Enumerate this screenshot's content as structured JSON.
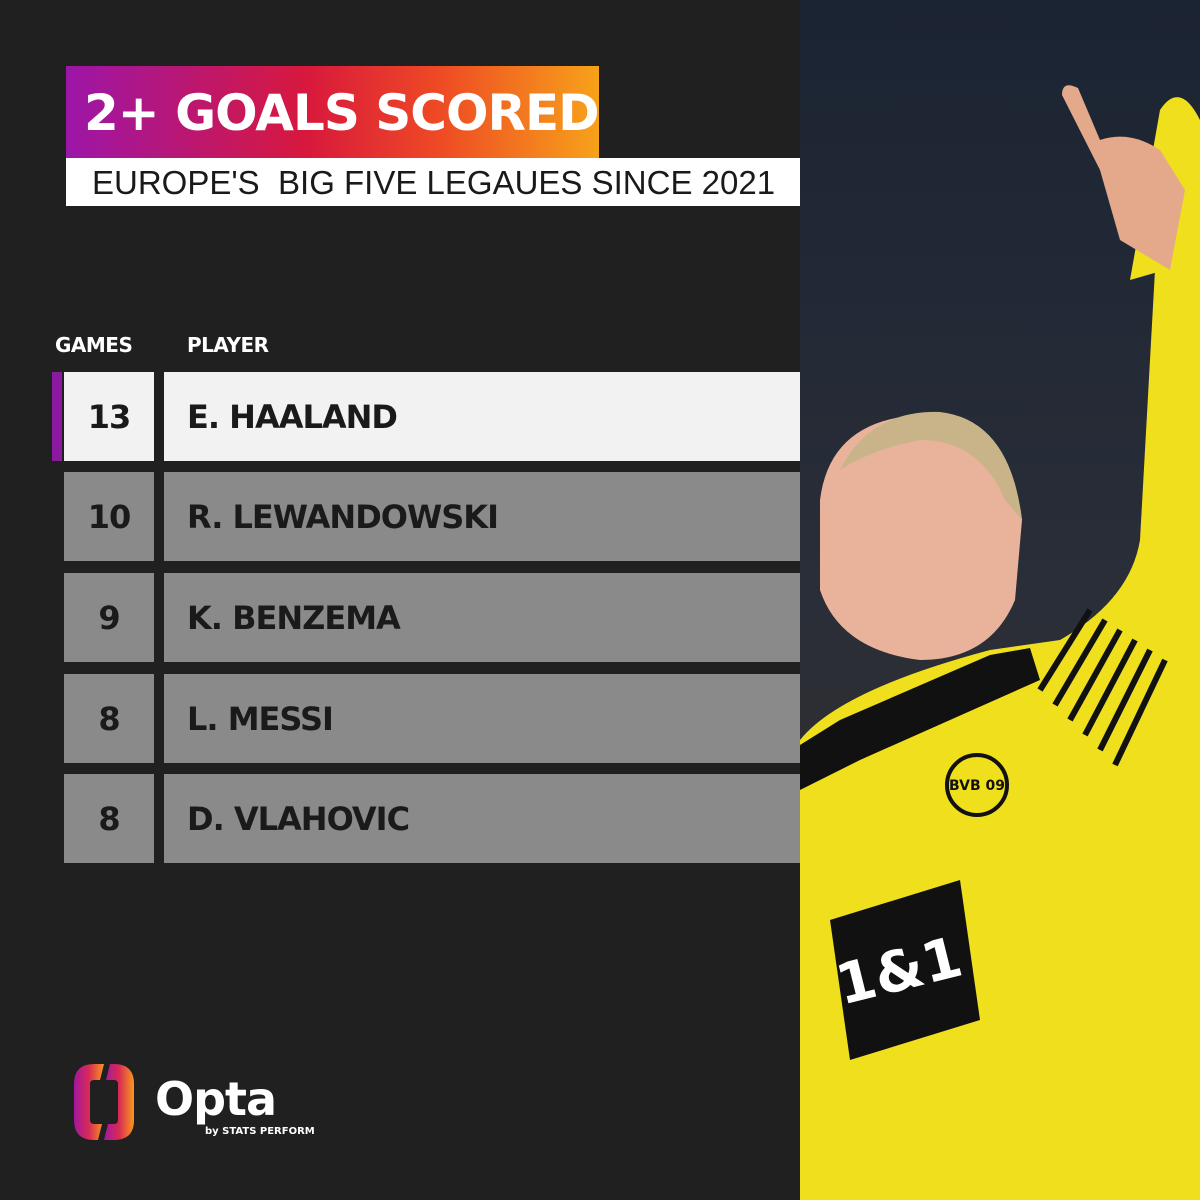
{
  "title": "2+ GOALS SCORED",
  "subtitle": "EUROPE'S  BIG FIVE LEGAUES SINCE 2021",
  "table": {
    "headers": {
      "games": "GAMES",
      "player": "PLAYER"
    },
    "rows": [
      {
        "games": "13",
        "player": "E. HAALAND",
        "highlighted": true
      },
      {
        "games": "10",
        "player": "R. LEWANDOWSKI"
      },
      {
        "games": "9",
        "player": "K. BENZEMA"
      },
      {
        "games": "8",
        "player": "L. MESSI"
      },
      {
        "games": "8",
        "player": "D. VLAHOVIC"
      }
    ]
  },
  "branding": {
    "logo": "Opta",
    "tagline": "by STATS PERFORM",
    "shirt_sponsor": "1&1",
    "club_badge": "BVB 09"
  },
  "colors": {
    "background": "#202020",
    "accent": "#8b1aa0",
    "row": "#8a8a8a",
    "highlight_row": "#f2f2f2",
    "shirt": "#f3e21b"
  }
}
